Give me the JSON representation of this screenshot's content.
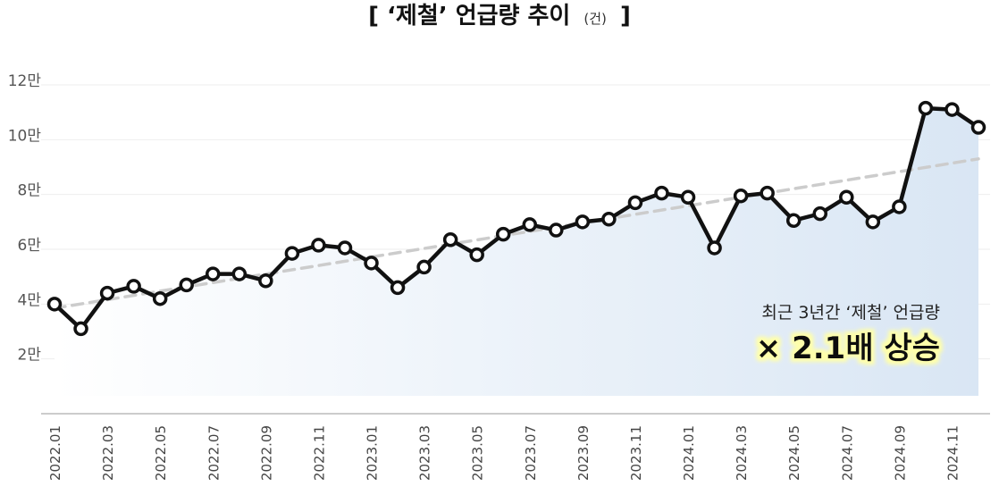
{
  "chart_data": {
    "type": "line",
    "title": "[ ‘제철’ 언급량 추이",
    "title_unit": "(건)",
    "title_close": "]",
    "x": [
      "2022.01",
      "2022.02",
      "2022.03",
      "2022.04",
      "2022.05",
      "2022.06",
      "2022.07",
      "2022.08",
      "2022.09",
      "2022.10",
      "2022.11",
      "2022.12",
      "2023.01",
      "2023.02",
      "2023.03",
      "2023.04",
      "2023.05",
      "2023.06",
      "2023.07",
      "2023.08",
      "2023.09",
      "2023.10",
      "2023.11",
      "2023.12",
      "2024.01",
      "2024.02",
      "2024.03",
      "2024.04",
      "2024.05",
      "2024.06",
      "2024.07",
      "2024.08",
      "2024.09",
      "2024.10",
      "2024.11",
      "2024.12"
    ],
    "xtick_labels": [
      "2022.01",
      "2022.03",
      "2022.05",
      "2022.07",
      "2022.09",
      "2022.11",
      "2023.01",
      "2023.03",
      "2023.05",
      "2023.07",
      "2023.09",
      "2023.11",
      "2024.01",
      "2024.03",
      "2024.05",
      "2024.07",
      "2024.09",
      "2024.11"
    ],
    "series": [
      {
        "values": [
          40000,
          31000,
          44000,
          46500,
          42000,
          47000,
          51000,
          51000,
          48500,
          58500,
          61500,
          60500,
          55000,
          46000,
          53500,
          63500,
          58000,
          65500,
          69000,
          67000,
          70000,
          71000,
          77000,
          80500,
          79000,
          60500,
          79500,
          80500,
          70500,
          73000,
          79000,
          70000,
          75500,
          111500,
          111000,
          104500
        ],
        "color": "#111111"
      }
    ],
    "trend": {
      "start": 38500,
      "end": 93000,
      "color": "#cccccc",
      "style": "dashed"
    },
    "area_fill": {
      "from": "#ffffff",
      "to": "#d9e6f4"
    },
    "ylim": [
      0,
      120000
    ],
    "yticks": [
      {
        "value": 20000,
        "label": "2만"
      },
      {
        "value": 40000,
        "label": "4만"
      },
      {
        "value": 60000,
        "label": "6만"
      },
      {
        "value": 80000,
        "label": "8만"
      },
      {
        "value": 100000,
        "label": "10만"
      },
      {
        "value": 120000,
        "label": "12만"
      }
    ],
    "grid": true,
    "annotation": {
      "line1": "최근 3년간 ‘제철’ 언급량",
      "line2": "× 2.1배 상승",
      "highlight_color": "#ffffaa"
    }
  }
}
